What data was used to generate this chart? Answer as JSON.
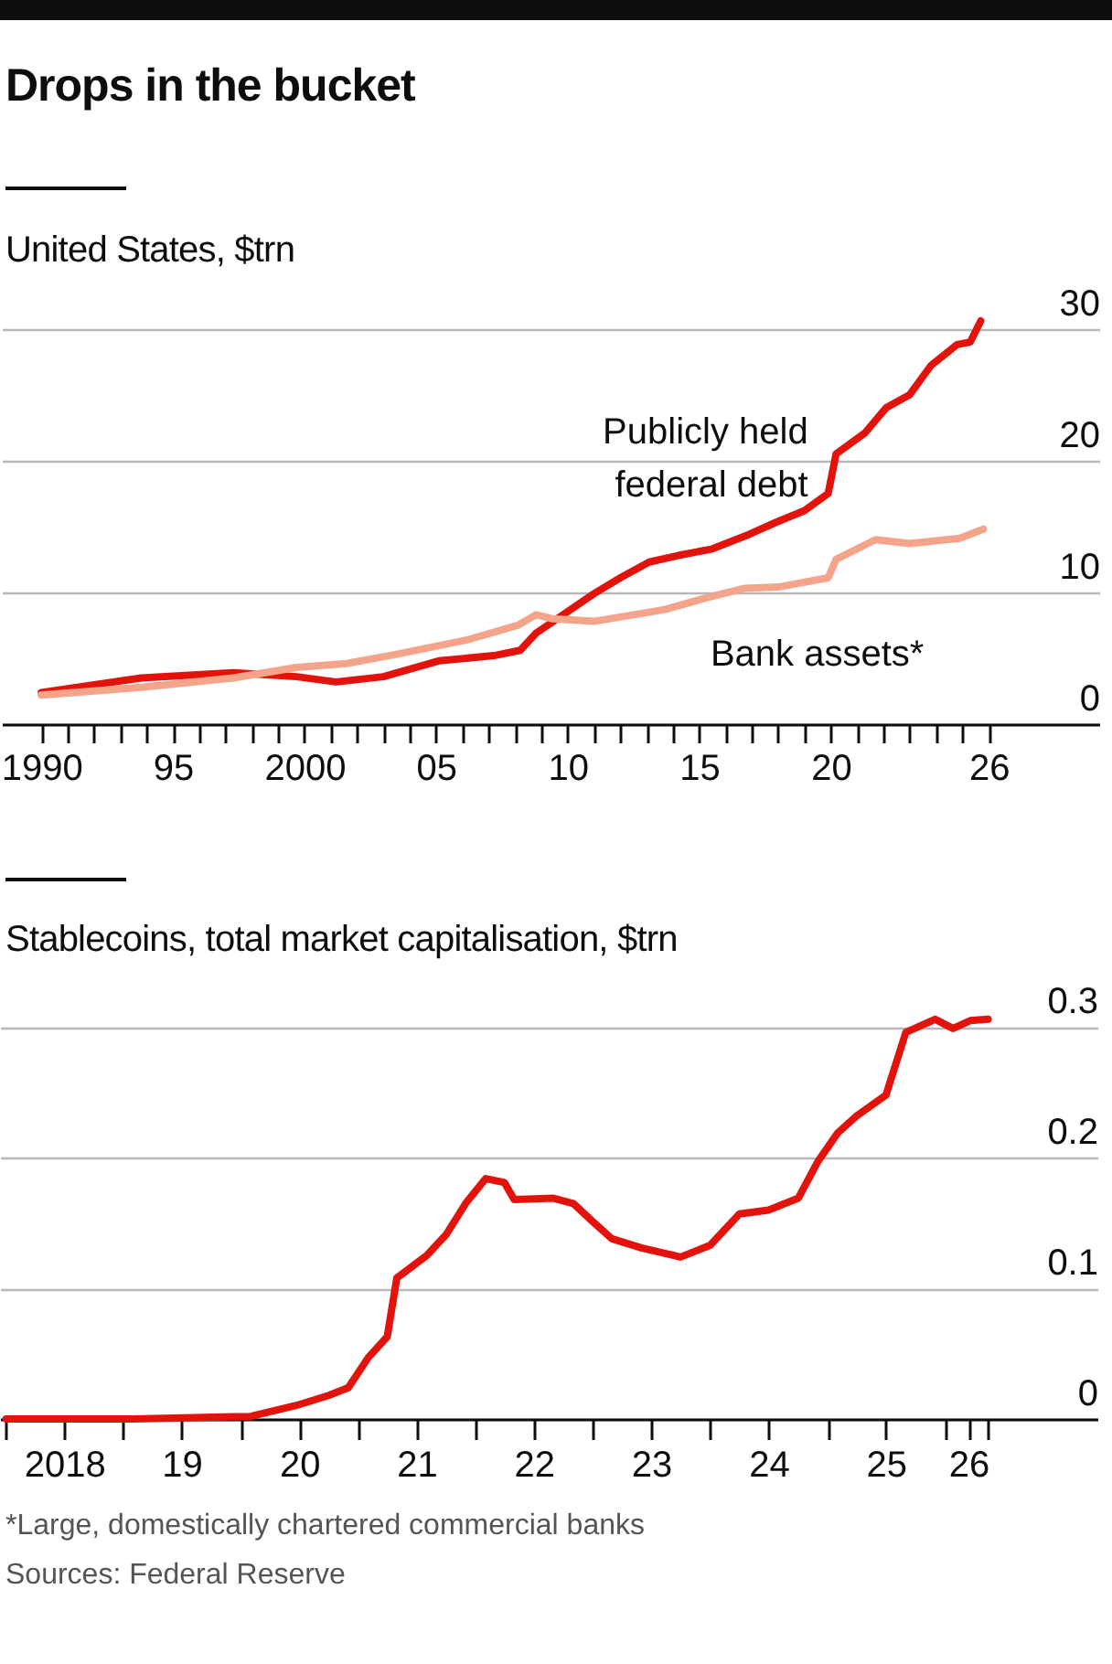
{
  "chart_data": [
    {
      "type": "line",
      "title": "Drops in the bucket",
      "subtitle": "United States, $trn",
      "xlim": [
        1988.5,
        2030.2
      ],
      "ylim": [
        0,
        34
      ],
      "xticks": [
        1990,
        {
          "value": 1991,
          "label": null
        },
        {
          "value": 1992,
          "label": null
        },
        {
          "value": 1993,
          "label": null
        },
        {
          "value": 1994,
          "label": null
        },
        {
          "value": 1995,
          "label": "95"
        },
        {
          "value": 1996,
          "label": null
        },
        {
          "value": 1997,
          "label": null
        },
        {
          "value": 1998,
          "label": null
        },
        {
          "value": 1999,
          "label": null
        },
        2000,
        {
          "value": 2001,
          "label": null
        },
        {
          "value": 2002,
          "label": null
        },
        {
          "value": 2003,
          "label": null
        },
        {
          "value": 2004,
          "label": null
        },
        {
          "value": 2005,
          "label": "05"
        },
        {
          "value": 2006,
          "label": null
        },
        {
          "value": 2007,
          "label": null
        },
        {
          "value": 2008,
          "label": null
        },
        {
          "value": 2009,
          "label": null
        },
        {
          "value": 2010,
          "label": "10"
        },
        {
          "value": 2011,
          "label": null
        },
        {
          "value": 2012,
          "label": null
        },
        {
          "value": 2013,
          "label": null
        },
        {
          "value": 2014,
          "label": null
        },
        {
          "value": 2015,
          "label": "15"
        },
        {
          "value": 2016,
          "label": null
        },
        {
          "value": 2017,
          "label": null
        },
        {
          "value": 2018,
          "label": null
        },
        {
          "value": 2019,
          "label": null
        },
        {
          "value": 2020,
          "label": "20"
        },
        {
          "value": 2021,
          "label": null
        },
        {
          "value": 2022,
          "label": null
        },
        {
          "value": 2023,
          "label": null
        },
        {
          "value": 2024,
          "label": null
        },
        {
          "value": 2025,
          "label": null
        },
        {
          "value": 2026,
          "label": "26"
        }
      ],
      "yticks": [
        0,
        10,
        20,
        30
      ],
      "grid": "y",
      "series": [
        {
          "name": "Publicly held federal debt",
          "color": "#e3120b",
          "x": [
            1990,
            1993.8,
            1997.3,
            1999.7,
            2001.2,
            2003,
            2005.1,
            2007.2,
            2008.2,
            2008.8,
            2011,
            2012,
            2013.1,
            2014.2,
            2015.5,
            2016.9,
            2017.9,
            2019,
            2019.9,
            2020.2,
            2021.3,
            2022.1,
            2023,
            2023.8,
            2024.8,
            2025.3,
            2025.7
          ],
          "values": [
            2.4,
            3.5,
            3.9,
            3.6,
            3.2,
            3.6,
            4.8,
            5.2,
            5.6,
            6.9,
            9.9,
            11.1,
            12.3,
            12.8,
            13.3,
            14.4,
            15.3,
            16.2,
            17.5,
            20.5,
            22.1,
            24,
            25,
            27.2,
            28.8,
            29,
            30.6
          ]
        },
        {
          "name": "Bank assets*",
          "color": "#f4a48a",
          "x": [
            1990,
            1993.8,
            1997.3,
            1999.7,
            2001.6,
            2003.5,
            2006.2,
            2008.1,
            2008.8,
            2009.4,
            2011,
            2013.7,
            2015.3,
            2016.7,
            2018,
            2019.9,
            2020.2,
            2021.7,
            2023,
            2024.9,
            2025.8
          ],
          "values": [
            2.2,
            2.8,
            3.5,
            4.3,
            4.6,
            5.3,
            6.4,
            7.5,
            8.3,
            8,
            7.8,
            8.7,
            9.6,
            10.3,
            10.4,
            11.1,
            12.5,
            14,
            13.7,
            14.1,
            14.8
          ]
        }
      ]
    },
    {
      "type": "line",
      "title": "Stablecoins, total market capitalisation, $trn",
      "xlim": [
        "2017-12-13",
        "2027-04-20"
      ],
      "ylim": [
        0,
        0.35
      ],
      "xticks": [
        {
          "value": "2018-01-01",
          "label": null
        },
        {
          "value": "2018-07-01",
          "label": "2018"
        },
        {
          "value": "2019-01-01",
          "label": null
        },
        {
          "value": "2019-07-01",
          "label": "19"
        },
        {
          "value": "2020-01-01",
          "label": null
        },
        {
          "value": "2020-07-01",
          "label": "20"
        },
        {
          "value": "2021-01-01",
          "label": null
        },
        {
          "value": "2021-07-01",
          "label": "21"
        },
        {
          "value": "2022-01-01",
          "label": null
        },
        {
          "value": "2022-07-01",
          "label": "22"
        },
        {
          "value": "2023-01-01",
          "label": null
        },
        {
          "value": "2023-07-01",
          "label": "23"
        },
        {
          "value": "2024-01-01",
          "label": null
        },
        {
          "value": "2024-07-01",
          "label": "24"
        },
        {
          "value": "2025-01-01",
          "label": null
        },
        {
          "value": "2025-07-01",
          "label": "25"
        },
        {
          "value": "2026-01-01",
          "label": null
        },
        {
          "value": "2026-03-15",
          "label": "26"
        },
        {
          "value": "2026-05-15",
          "label": null
        }
      ],
      "yticks": [
        0,
        0.1,
        0.2,
        0.3
      ],
      "grid": "y",
      "series": [
        {
          "color": "#e3120b",
          "x": [
            "2018-01",
            "2019-02",
            "2020-02",
            "2020-07",
            "2020-10",
            "2020-12",
            "2021-02",
            "2021-04",
            "2021-05",
            "2021-08",
            "2021-10",
            "2021-12",
            "2022-02",
            "2022-04",
            "2022-05",
            "2022-09",
            "2022-11",
            "2023-01",
            "2023-03",
            "2023-06",
            "2023-10",
            "2024-01",
            "2024-04",
            "2024-07",
            "2024-10",
            "2024-12",
            "2025-02",
            "2025-04",
            "2025-07",
            "2025-09",
            "2025-12-01",
            "2026-01-26",
            "2026-03-20",
            "2026-05-15"
          ],
          "values": [
            0,
            0,
            0.002,
            0.011,
            0.018,
            0.024,
            0.047,
            0.063,
            0.108,
            0.125,
            0.141,
            0.165,
            0.184,
            0.181,
            0.168,
            0.169,
            0.165,
            0.151,
            0.138,
            0.131,
            0.124,
            0.133,
            0.157,
            0.16,
            0.169,
            0.197,
            0.219,
            0.232,
            0.248,
            0.296,
            0.306,
            0.299,
            0.305,
            0.306
          ]
        }
      ],
      "annotations": [
        "*Large, domestically chartered commercial banks",
        "Sources: Federal Reserve"
      ]
    }
  ]
}
